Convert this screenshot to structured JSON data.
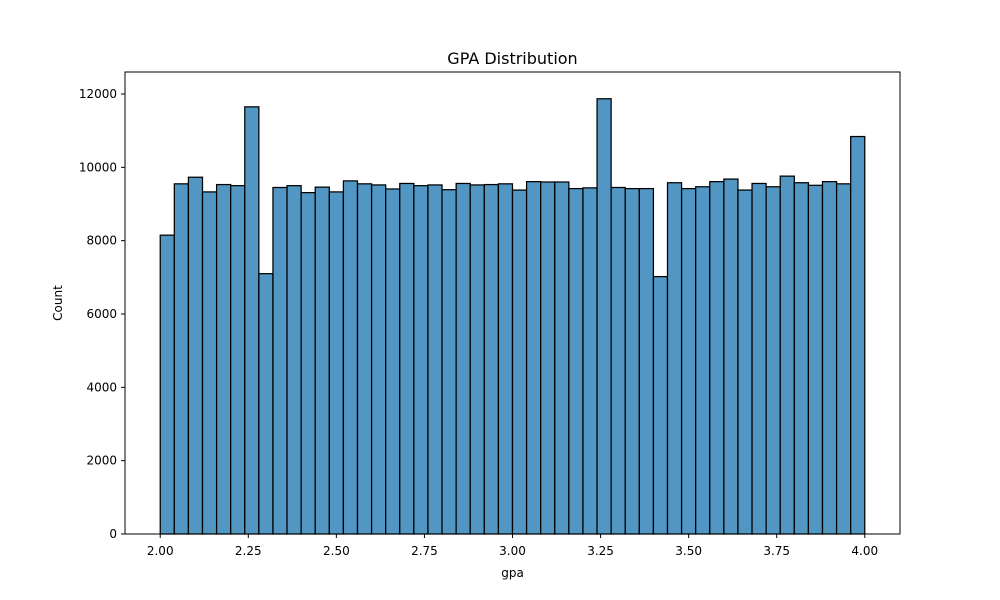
{
  "chart_data": {
    "type": "bar",
    "subtype": "histogram",
    "title": "GPA Distribution",
    "xlabel": "gpa",
    "ylabel": "Count",
    "xlim": [
      1.9,
      4.1
    ],
    "ylim": [
      0,
      12600
    ],
    "bin_start": 2.0,
    "bin_width": 0.04,
    "values": [
      8150,
      9550,
      9730,
      9330,
      9530,
      9500,
      11650,
      7100,
      9450,
      9500,
      9310,
      9460,
      9330,
      9630,
      9550,
      9520,
      9410,
      9560,
      9500,
      9520,
      9390,
      9560,
      9520,
      9530,
      9550,
      9380,
      9610,
      9600,
      9600,
      9420,
      9440,
      11870,
      9450,
      9420,
      9420,
      7020,
      9580,
      9420,
      9470,
      9610,
      9680,
      9380,
      9560,
      9470,
      9760,
      9580,
      9510,
      9610,
      9550,
      10840
    ],
    "xticks": [
      2.0,
      2.25,
      2.5,
      2.75,
      3.0,
      3.25,
      3.5,
      3.75,
      4.0
    ],
    "xtick_labels": [
      "2.00",
      "2.25",
      "2.50",
      "2.75",
      "3.00",
      "3.25",
      "3.50",
      "3.75",
      "4.00"
    ],
    "yticks": [
      0,
      2000,
      4000,
      6000,
      8000,
      10000,
      12000
    ],
    "ytick_labels": [
      "0",
      "2000",
      "4000",
      "6000",
      "8000",
      "10000",
      "12000"
    ],
    "bar_color": "#5296c4",
    "edge_color": "#000000",
    "grid": false,
    "legend": "none"
  }
}
